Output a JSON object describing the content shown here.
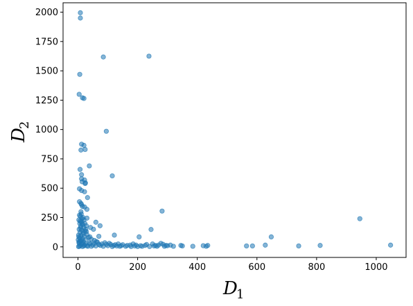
{
  "chart_data": {
    "type": "scatter",
    "xlabel_main": "D",
    "xlabel_sub": "1",
    "ylabel_main": "D",
    "ylabel_sub": "2",
    "xlim": [
      -50,
      1100
    ],
    "ylim": [
      -90,
      2080
    ],
    "xticks": [
      0,
      200,
      400,
      600,
      800,
      1000
    ],
    "yticks": [
      0,
      250,
      500,
      750,
      1000,
      1250,
      1500,
      1750,
      2000
    ],
    "grid": false,
    "marker_color": "#1f77b4",
    "marker_opacity": 0.55,
    "series": [
      {
        "points": [
          [
            8,
            1995
          ],
          [
            8,
            1950
          ],
          [
            85,
            1618
          ],
          [
            238,
            1625
          ],
          [
            6,
            1470
          ],
          [
            4,
            1300
          ],
          [
            15,
            1270
          ],
          [
            20,
            1265
          ],
          [
            95,
            985
          ],
          [
            12,
            875
          ],
          [
            20,
            865
          ],
          [
            10,
            825
          ],
          [
            24,
            830
          ],
          [
            38,
            690
          ],
          [
            115,
            605
          ],
          [
            7,
            660
          ],
          [
            12,
            615
          ],
          [
            12,
            580
          ],
          [
            14,
            555
          ],
          [
            22,
            570
          ],
          [
            24,
            540
          ],
          [
            25,
            545
          ],
          [
            5,
            495
          ],
          [
            12,
            480
          ],
          [
            22,
            470
          ],
          [
            32,
            420
          ],
          [
            5,
            385
          ],
          [
            10,
            370
          ],
          [
            12,
            360
          ],
          [
            15,
            345
          ],
          [
            22,
            340
          ],
          [
            30,
            320
          ],
          [
            282,
            305
          ],
          [
            30,
            245
          ],
          [
            60,
            210
          ],
          [
            74,
            180
          ],
          [
            42,
            165
          ],
          [
            52,
            150
          ],
          [
            245,
            148
          ],
          [
            28,
            130
          ],
          [
            122,
            100
          ],
          [
            70,
            90
          ],
          [
            40,
            85
          ],
          [
            205,
            85
          ],
          [
            648,
            85
          ],
          [
            945,
            240
          ],
          [
            10,
            300
          ],
          [
            5,
            270
          ],
          [
            8,
            260
          ],
          [
            14,
            240
          ],
          [
            20,
            230
          ],
          [
            11,
            215
          ],
          [
            6,
            200
          ],
          [
            16,
            190
          ],
          [
            9,
            175
          ],
          [
            19,
            165
          ],
          [
            4,
            150
          ],
          [
            12,
            140
          ],
          [
            24,
            135
          ],
          [
            7,
            125
          ],
          [
            17,
            110
          ],
          [
            30,
            105
          ],
          [
            10,
            95
          ],
          [
            21,
            90
          ],
          [
            35,
            80
          ],
          [
            6,
            75
          ],
          [
            15,
            70
          ],
          [
            45,
            65
          ],
          [
            27,
            60
          ],
          [
            55,
            55
          ],
          [
            10,
            50
          ],
          [
            18,
            45
          ],
          [
            65,
            40
          ],
          [
            90,
            35
          ],
          [
            39,
            35
          ],
          [
            4,
            30
          ],
          [
            12,
            25
          ],
          [
            25,
            25
          ],
          [
            80,
            25
          ],
          [
            110,
            20
          ],
          [
            150,
            18
          ],
          [
            175,
            15
          ],
          [
            195,
            15
          ],
          [
            210,
            10
          ],
          [
            225,
            12
          ],
          [
            260,
            12
          ],
          [
            278,
            30
          ],
          [
            300,
            10
          ],
          [
            310,
            15
          ],
          [
            345,
            12
          ],
          [
            350,
            8
          ],
          [
            385,
            5
          ],
          [
            420,
            10
          ],
          [
            430,
            5
          ],
          [
            435,
            12
          ],
          [
            565,
            8
          ],
          [
            585,
            8
          ],
          [
            628,
            15
          ],
          [
            740,
            8
          ],
          [
            812,
            12
          ],
          [
            1048,
            15
          ],
          [
            130,
            8
          ],
          [
            160,
            5
          ],
          [
            185,
            25
          ],
          [
            230,
            20
          ],
          [
            255,
            8
          ],
          [
            270,
            15
          ],
          [
            290,
            5
          ],
          [
            100,
            10
          ],
          [
            120,
            12
          ],
          [
            140,
            5
          ],
          [
            60,
            8
          ],
          [
            70,
            20
          ],
          [
            50,
            15
          ],
          [
            45,
            5
          ],
          [
            30,
            10
          ],
          [
            20,
            8
          ],
          [
            15,
            3
          ],
          [
            5,
            5
          ],
          [
            2,
            2
          ],
          [
            8,
            12
          ],
          [
            3,
            40
          ],
          [
            1,
            60
          ],
          [
            2,
            100
          ],
          [
            3,
            85
          ],
          [
            6,
            45
          ],
          [
            13,
            55
          ],
          [
            16,
            30
          ],
          [
            22,
            15
          ],
          [
            33,
            5
          ],
          [
            40,
            25
          ],
          [
            55,
            30
          ],
          [
            62,
            45
          ],
          [
            75,
            12
          ],
          [
            85,
            5
          ],
          [
            95,
            22
          ],
          [
            105,
            30
          ],
          [
            115,
            3
          ],
          [
            125,
            18
          ],
          [
            135,
            25
          ],
          [
            145,
            10
          ],
          [
            165,
            12
          ],
          [
            178,
            3
          ],
          [
            190,
            8
          ],
          [
            200,
            3
          ],
          [
            215,
            5
          ],
          [
            240,
            3
          ],
          [
            250,
            25
          ],
          [
            265,
            5
          ],
          [
            285,
            22
          ],
          [
            295,
            12
          ],
          [
            320,
            5
          ],
          [
            18,
            125
          ],
          [
            26,
            150
          ],
          [
            9,
            160
          ],
          [
            13,
            200
          ],
          [
            7,
            220
          ],
          [
            23,
            200
          ],
          [
            17,
            250
          ],
          [
            3,
            230
          ],
          [
            11,
            280
          ],
          [
            28,
            180
          ]
        ]
      }
    ]
  }
}
